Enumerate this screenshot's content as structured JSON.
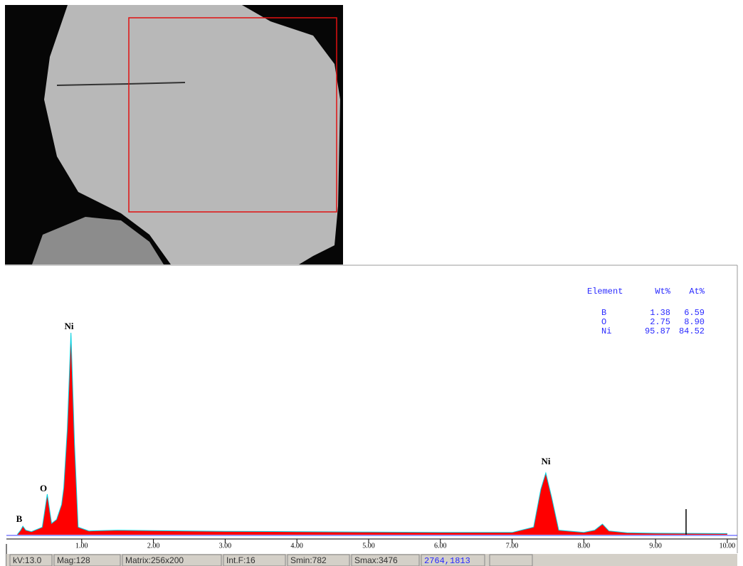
{
  "chart_data": {
    "type": "area",
    "x": [
      0.1,
      0.15,
      0.18,
      0.22,
      0.3,
      0.45,
      0.52,
      0.58,
      0.65,
      0.72,
      0.75,
      0.8,
      0.85,
      0.9,
      0.95,
      1.1,
      1.5,
      2.0,
      3.0,
      4.0,
      5.0,
      6.0,
      7.0,
      7.3,
      7.4,
      7.47,
      7.55,
      7.65,
      8.0,
      8.15,
      8.26,
      8.35,
      8.6,
      9.0,
      10.0
    ],
    "values": [
      0,
      60,
      113,
      60,
      40,
      100,
      536,
      150,
      200,
      400,
      620,
      1400,
      2672,
      1200,
      100,
      50,
      60,
      55,
      45,
      40,
      35,
      30,
      30,
      100,
      600,
      818,
      500,
      60,
      30,
      60,
      141,
      50,
      25,
      20,
      15
    ],
    "color": "#ff0000",
    "line_color": "#00d0e0",
    "xlim": [
      0,
      10.1
    ],
    "ylim": [
      0,
      3500
    ],
    "xticks": [
      {
        "value": 1,
        "label": "1.00"
      },
      {
        "value": 2,
        "label": "2.00"
      },
      {
        "value": 3,
        "label": "3.00"
      },
      {
        "value": 4,
        "label": "4.00"
      },
      {
        "value": 5,
        "label": "5.00"
      },
      {
        "value": 6,
        "label": "6.00"
      },
      {
        "value": 7,
        "label": "7.00"
      },
      {
        "value": 8,
        "label": "8.00"
      },
      {
        "value": 9,
        "label": "9.00"
      },
      {
        "value": 10,
        "label": "10.00"
      }
    ],
    "annotations": [
      "B",
      "O",
      "Ni",
      "Ni"
    ]
  },
  "element_table": {
    "header": [
      "Element",
      "Wt%",
      "At%"
    ],
    "rows": [
      [
        "B",
        "1.38",
        "6.59"
      ],
      [
        "O",
        "2.75",
        "8.90"
      ],
      [
        "Ni",
        "95.87",
        "84.52"
      ]
    ]
  },
  "status_bar": [
    "kV:13.0",
    "Mag:128",
    "Matrix:256x200",
    "Int.F:16",
    "Smin:782",
    "Smax:3476",
    "2764,1813"
  ]
}
